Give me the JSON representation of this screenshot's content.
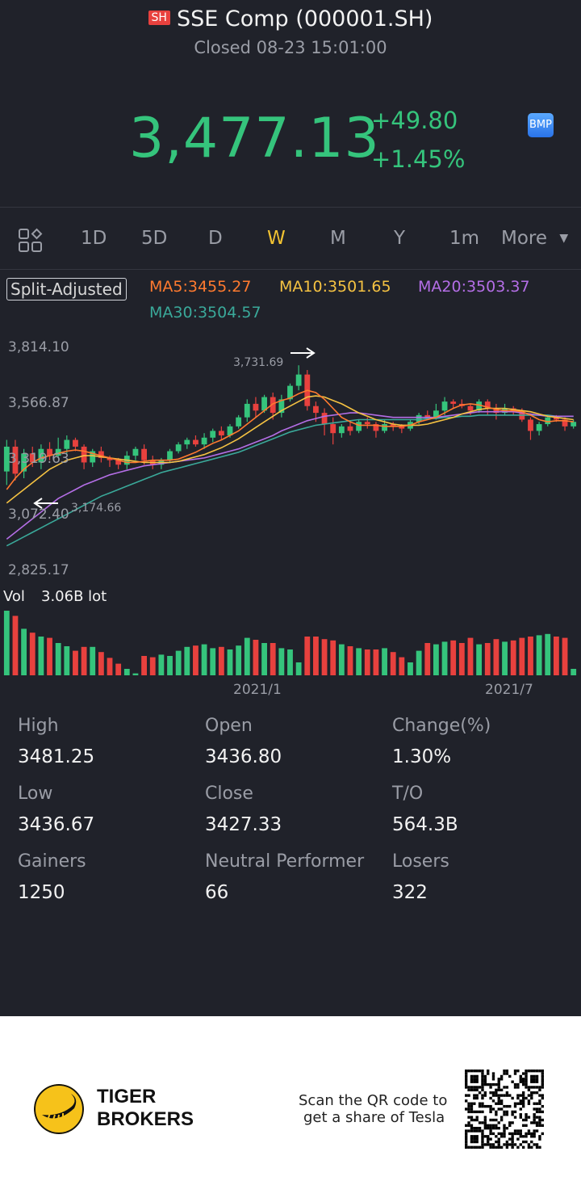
{
  "header": {
    "exchange_badge": "SH",
    "title": "SSE Comp (000001.SH)",
    "status": "Closed 08-23 15:01:00",
    "price": "3,477.13",
    "change": "+49.80",
    "change_pct": "+1.45%",
    "bmp_badge": "BMP",
    "up_color": "#35c47c",
    "down_color": "#e8413e"
  },
  "tabs": {
    "items": [
      "1D",
      "5D",
      "D",
      "W",
      "M",
      "Y",
      "1m"
    ],
    "more": "More",
    "active": "W"
  },
  "indicators": {
    "split_label": "Split-Adjusted",
    "ma5": "MA5:3455.27",
    "ma10": "MA10:3501.65",
    "ma20": "MA20:3503.37",
    "ma30": "MA30:3504.57",
    "ma5_color": "#ff7a2f",
    "ma10_color": "#f5c242",
    "ma20_color": "#b46ee6",
    "ma30_color": "#3aa99a"
  },
  "chart_data": {
    "type": "candlestick",
    "y_ticks": [
      "3,814.10",
      "3,566.87",
      "3,319.63",
      "3,072.40",
      "2,825.17"
    ],
    "ylim": [
      2825.17,
      3814.1
    ],
    "high_marker": "3,731.69",
    "low_marker": "3,174.66",
    "volume_label": "Vol",
    "volume_value": "3.06B lot",
    "x_ticks": [
      "2021/1",
      "2021/7"
    ],
    "candles": [
      [
        3260,
        3370,
        3200,
        3400
      ],
      [
        3370,
        3250,
        3220,
        3400
      ],
      [
        3260,
        3340,
        3230,
        3360
      ],
      [
        3340,
        3300,
        3280,
        3370
      ],
      [
        3300,
        3360,
        3270,
        3380
      ],
      [
        3360,
        3330,
        3310,
        3390
      ],
      [
        3330,
        3360,
        3320,
        3410
      ],
      [
        3360,
        3400,
        3340,
        3420
      ],
      [
        3400,
        3370,
        3350,
        3410
      ],
      [
        3370,
        3300,
        3270,
        3380
      ],
      [
        3300,
        3350,
        3280,
        3360
      ],
      [
        3350,
        3320,
        3300,
        3370
      ],
      [
        3320,
        3310,
        3280,
        3330
      ],
      [
        3310,
        3290,
        3270,
        3320
      ],
      [
        3290,
        3330,
        3270,
        3350
      ],
      [
        3330,
        3360,
        3310,
        3370
      ],
      [
        3360,
        3310,
        3290,
        3380
      ],
      [
        3310,
        3290,
        3270,
        3330
      ],
      [
        3290,
        3310,
        3270,
        3320
      ],
      [
        3310,
        3350,
        3300,
        3360
      ],
      [
        3350,
        3380,
        3340,
        3390
      ],
      [
        3380,
        3400,
        3360,
        3410
      ],
      [
        3400,
        3380,
        3370,
        3420
      ],
      [
        3380,
        3410,
        3360,
        3430
      ],
      [
        3410,
        3440,
        3390,
        3450
      ],
      [
        3440,
        3420,
        3400,
        3460
      ],
      [
        3420,
        3460,
        3410,
        3470
      ],
      [
        3460,
        3500,
        3450,
        3510
      ],
      [
        3500,
        3560,
        3480,
        3580
      ],
      [
        3560,
        3530,
        3500,
        3590
      ],
      [
        3530,
        3590,
        3520,
        3600
      ],
      [
        3590,
        3520,
        3490,
        3610
      ],
      [
        3520,
        3580,
        3500,
        3600
      ],
      [
        3580,
        3640,
        3570,
        3650
      ],
      [
        3640,
        3690,
        3620,
        3731
      ],
      [
        3690,
        3550,
        3530,
        3710
      ],
      [
        3550,
        3520,
        3480,
        3570
      ],
      [
        3520,
        3470,
        3420,
        3540
      ],
      [
        3470,
        3430,
        3380,
        3500
      ],
      [
        3430,
        3460,
        3410,
        3470
      ],
      [
        3460,
        3440,
        3420,
        3480
      ],
      [
        3440,
        3480,
        3430,
        3490
      ],
      [
        3480,
        3470,
        3450,
        3500
      ],
      [
        3470,
        3440,
        3410,
        3480
      ],
      [
        3440,
        3470,
        3430,
        3490
      ],
      [
        3470,
        3460,
        3440,
        3480
      ],
      [
        3460,
        3450,
        3430,
        3470
      ],
      [
        3450,
        3480,
        3440,
        3490
      ],
      [
        3480,
        3510,
        3470,
        3520
      ],
      [
        3510,
        3500,
        3490,
        3530
      ],
      [
        3500,
        3530,
        3490,
        3560
      ],
      [
        3530,
        3570,
        3510,
        3590
      ],
      [
        3570,
        3560,
        3540,
        3580
      ],
      [
        3560,
        3550,
        3540,
        3580
      ],
      [
        3550,
        3530,
        3510,
        3560
      ],
      [
        3530,
        3570,
        3520,
        3580
      ],
      [
        3570,
        3540,
        3510,
        3580
      ],
      [
        3540,
        3520,
        3490,
        3560
      ],
      [
        3520,
        3540,
        3510,
        3560
      ],
      [
        3540,
        3530,
        3510,
        3550
      ],
      [
        3530,
        3490,
        3480,
        3540
      ],
      [
        3490,
        3440,
        3400,
        3500
      ],
      [
        3440,
        3470,
        3420,
        3480
      ],
      [
        3470,
        3500,
        3460,
        3510
      ],
      [
        3500,
        3490,
        3480,
        3510
      ],
      [
        3490,
        3460,
        3440,
        3500
      ],
      [
        3460,
        3480,
        3450,
        3490
      ]
    ],
    "ma5": [
      3180,
      3230,
      3270,
      3300,
      3320,
      3330,
      3340,
      3350,
      3355,
      3350,
      3340,
      3330,
      3320,
      3310,
      3300,
      3300,
      3305,
      3310,
      3310,
      3310,
      3315,
      3330,
      3345,
      3365,
      3385,
      3400,
      3420,
      3440,
      3470,
      3500,
      3530,
      3560,
      3575,
      3585,
      3605,
      3620,
      3610,
      3580,
      3540,
      3500,
      3480,
      3465,
      3465,
      3465,
      3460,
      3460,
      3460,
      3465,
      3480,
      3490,
      3500,
      3520,
      3540,
      3555,
      3560,
      3555,
      3545,
      3535,
      3530,
      3530,
      3525,
      3510,
      3490,
      3480,
      3485,
      3485,
      3480
    ],
    "ma10": [
      3120,
      3150,
      3180,
      3210,
      3240,
      3270,
      3290,
      3310,
      3320,
      3330,
      3330,
      3325,
      3320,
      3315,
      3310,
      3305,
      3300,
      3300,
      3300,
      3300,
      3305,
      3315,
      3325,
      3335,
      3350,
      3365,
      3385,
      3405,
      3430,
      3455,
      3480,
      3505,
      3530,
      3550,
      3570,
      3590,
      3595,
      3590,
      3575,
      3560,
      3540,
      3520,
      3505,
      3490,
      3480,
      3470,
      3465,
      3465,
      3465,
      3470,
      3480,
      3490,
      3500,
      3515,
      3525,
      3535,
      3540,
      3540,
      3540,
      3535,
      3530,
      3525,
      3515,
      3505,
      3500,
      3495,
      3490
    ],
    "ma20": [
      2960,
      2990,
      3020,
      3050,
      3080,
      3110,
      3140,
      3160,
      3180,
      3200,
      3215,
      3230,
      3245,
      3255,
      3265,
      3275,
      3285,
      3290,
      3295,
      3300,
      3305,
      3310,
      3315,
      3320,
      3330,
      3340,
      3350,
      3360,
      3375,
      3390,
      3405,
      3420,
      3440,
      3455,
      3470,
      3485,
      3495,
      3505,
      3510,
      3515,
      3520,
      3520,
      3515,
      3510,
      3505,
      3500,
      3500,
      3500,
      3500,
      3500,
      3500,
      3505,
      3510,
      3515,
      3520,
      3525,
      3525,
      3525,
      3525,
      3525,
      3520,
      3515,
      3510,
      3505,
      3505,
      3505,
      3505
    ],
    "ma30": [
      2930,
      2950,
      2970,
      2990,
      3010,
      3030,
      3050,
      3070,
      3090,
      3110,
      3130,
      3150,
      3165,
      3180,
      3195,
      3210,
      3225,
      3240,
      3255,
      3265,
      3275,
      3285,
      3295,
      3305,
      3315,
      3325,
      3335,
      3345,
      3360,
      3375,
      3390,
      3405,
      3420,
      3435,
      3445,
      3455,
      3465,
      3470,
      3475,
      3480,
      3485,
      3490,
      3490,
      3490,
      3490,
      3490,
      3490,
      3490,
      3490,
      3495,
      3495,
      3500,
      3500,
      3505,
      3505,
      3510,
      3510,
      3510,
      3510,
      3510,
      3510,
      3510,
      3510,
      3510,
      3505,
      3505,
      3505
    ],
    "volume": [
      100,
      92,
      72,
      66,
      60,
      58,
      50,
      45,
      38,
      44,
      44,
      36,
      27,
      18,
      10,
      3,
      30,
      28,
      32,
      30,
      38,
      44,
      46,
      48,
      42,
      44,
      40,
      46,
      58,
      55,
      50,
      50,
      42,
      40,
      20,
      60,
      60,
      56,
      54,
      48,
      45,
      42,
      40,
      40,
      42,
      36,
      28,
      20,
      38,
      50,
      48,
      52,
      54,
      50,
      58,
      48,
      50,
      56,
      52,
      54,
      58,
      60,
      62,
      64,
      60,
      58,
      10
    ]
  },
  "stats": [
    {
      "label": "High",
      "value": "3481.25"
    },
    {
      "label": "Open",
      "value": "3436.80"
    },
    {
      "label": "Change(%)",
      "value": "1.30%"
    },
    {
      "label": "Low",
      "value": "3436.67"
    },
    {
      "label": "Close",
      "value": "3427.33"
    },
    {
      "label": "T/O",
      "value": "564.3B"
    },
    {
      "label": "Gainers",
      "value": "1250"
    },
    {
      "label": "Neutral Performer",
      "value": "66"
    },
    {
      "label": "Losers",
      "value": "322"
    }
  ],
  "footer": {
    "brand_line1": "TIGER",
    "brand_line2": "BROKERS",
    "scan_line1": "Scan the QR code to",
    "scan_line2": "get a share of Tesla"
  }
}
